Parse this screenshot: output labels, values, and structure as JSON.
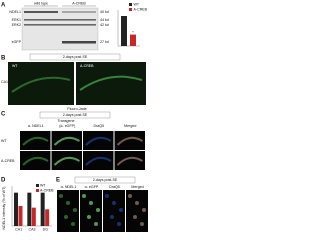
{
  "panels": {
    "A": {
      "label": "A",
      "columns": [
        "wild type",
        "A-CREB"
      ],
      "rows": [
        "NDEL1",
        "ERK1",
        "ERK2",
        "eGFP"
      ],
      "sizes": [
        "40 kd",
        "44 kd",
        "42 kd",
        "27 kd"
      ],
      "chart": {
        "series": [
          {
            "name": "WT",
            "color": "#222222",
            "values": [
              100
            ]
          },
          {
            "name": "A-CREB",
            "color": "#c62828",
            "values": [
              38
            ]
          }
        ],
        "ylim": [
          0,
          120
        ],
        "annotation": "*"
      }
    },
    "B": {
      "label": "B",
      "title": "2-days post-SE",
      "columns": [
        "WT",
        "A-CREB"
      ],
      "region": "CA1",
      "stain": "Fluoro-Jade"
    },
    "C": {
      "label": "C",
      "title": "2-days post-SE",
      "transgene": "Transgene",
      "columns": [
        "α- NDEL1",
        "(α- eGFP)",
        "DraQ5",
        "Merged"
      ],
      "rows": [
        "WT",
        "A-CREB"
      ]
    },
    "D": {
      "label": "D",
      "ylabel": "NDEL1 intensity (% of WT)",
      "categories": [
        "CA1",
        "CA3",
        "DG"
      ],
      "series": [
        {
          "name": "WT",
          "color": "#222222",
          "values": [
            100,
            100,
            100
          ]
        },
        {
          "name": "A-CREB",
          "color": "#c62828",
          "values": [
            60,
            55,
            50
          ]
        }
      ],
      "ylim": [
        0,
        120
      ]
    },
    "E": {
      "label": "E",
      "title": "2-days post-SE",
      "columns": [
        "α- NDEL1",
        "α- eGFP",
        "DraQ5",
        "Merged"
      ]
    }
  }
}
